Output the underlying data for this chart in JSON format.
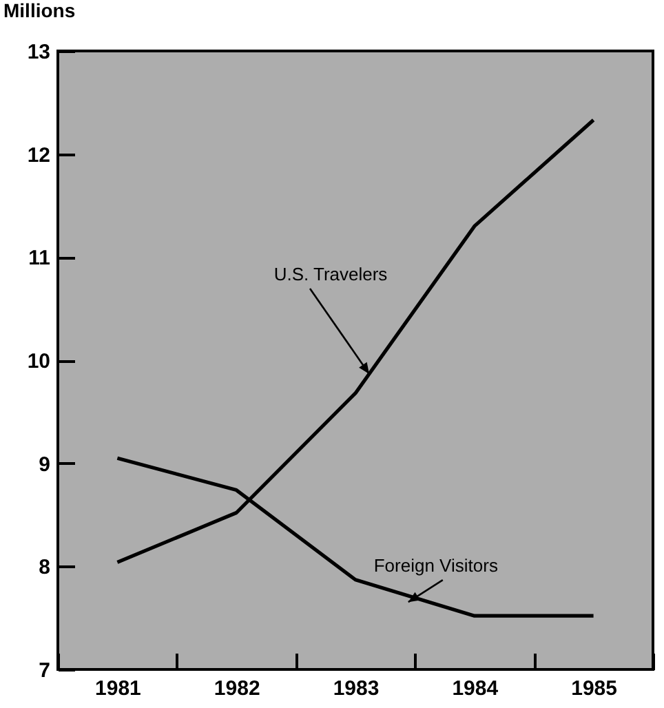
{
  "chart_data": {
    "type": "line",
    "ylabel": "Millions",
    "categories": [
      "1981",
      "1982",
      "1983",
      "1984",
      "1985"
    ],
    "series": [
      {
        "name": "U.S. Travelers",
        "color": "#000000",
        "values": [
          8.04,
          8.52,
          9.68,
          11.3,
          12.33
        ]
      },
      {
        "name": "Foreign Visitors",
        "color": "#000000",
        "values": [
          9.05,
          8.74,
          7.87,
          7.52,
          7.52
        ]
      }
    ],
    "ylim": [
      7,
      13
    ],
    "yticks": [
      7,
      8,
      9,
      10,
      11,
      12,
      13
    ],
    "grid": false,
    "legend": false,
    "marker": "none",
    "line_style": "solid"
  }
}
